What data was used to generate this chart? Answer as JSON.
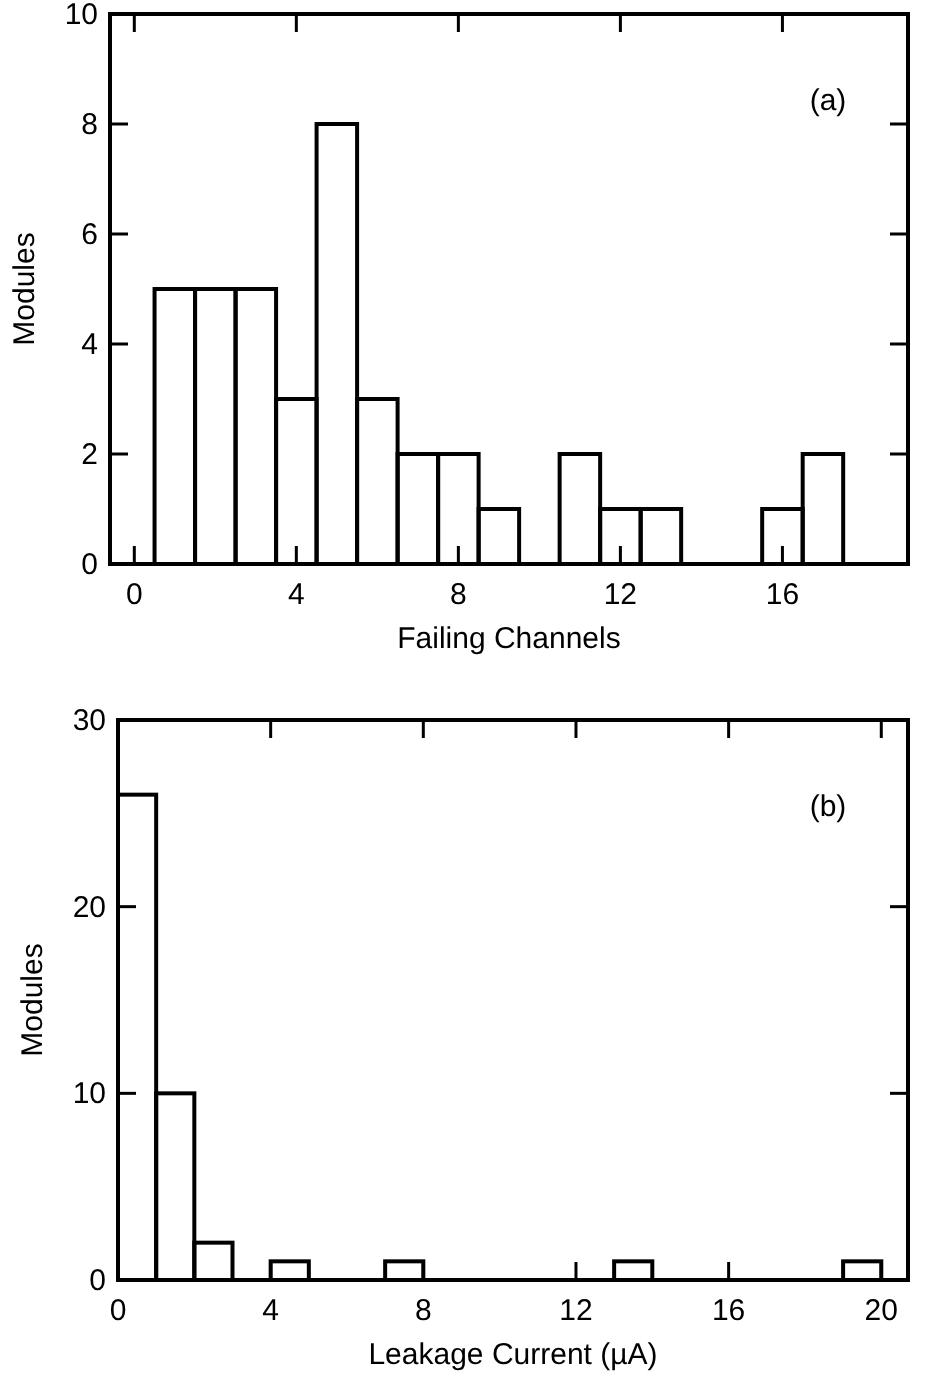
{
  "chart_data": [
    {
      "type": "histogram",
      "xlabel": "Failing Channels",
      "ylabel": "Modules",
      "annotations": [
        "(a)"
      ],
      "bins": [
        0.5,
        1.5,
        2.5,
        3.5,
        4.5,
        5.5,
        6.5,
        7.5,
        8.5,
        9.5,
        10.5,
        11.5,
        12.5,
        13.5,
        14.5,
        15.5,
        16.5,
        17.5
      ],
      "values": [
        5,
        5,
        5,
        3,
        8,
        3,
        2,
        2,
        1,
        0,
        2,
        1,
        1,
        0,
        0,
        1,
        2
      ],
      "color": "#000000",
      "xlim": [
        -0.6,
        19.1
      ],
      "xticks": [
        0,
        4,
        8,
        12,
        16
      ],
      "ylim": [
        0,
        10
      ],
      "yticks": [
        0,
        2,
        4,
        6,
        8,
        10
      ]
    },
    {
      "type": "histogram",
      "xlabel": "Leakage Current    (µA)",
      "ylabel": "Modules",
      "annotations": [
        "(b)"
      ],
      "bins": [
        0,
        1,
        2,
        3,
        4,
        5,
        6,
        7,
        8,
        9,
        10,
        11,
        12,
        13,
        14,
        15,
        16,
        17,
        18,
        19,
        20
      ],
      "values": [
        26,
        10,
        2,
        0,
        1,
        0,
        0,
        1,
        0,
        0,
        0,
        0,
        0,
        1,
        0,
        0,
        0,
        0,
        0,
        1
      ],
      "color": "#000000",
      "xlim": [
        0,
        20.7
      ],
      "xticks": [
        0,
        4,
        8,
        12,
        16,
        20
      ],
      "ylim": [
        0,
        30
      ],
      "yticks": [
        0,
        10,
        20,
        30
      ]
    }
  ]
}
